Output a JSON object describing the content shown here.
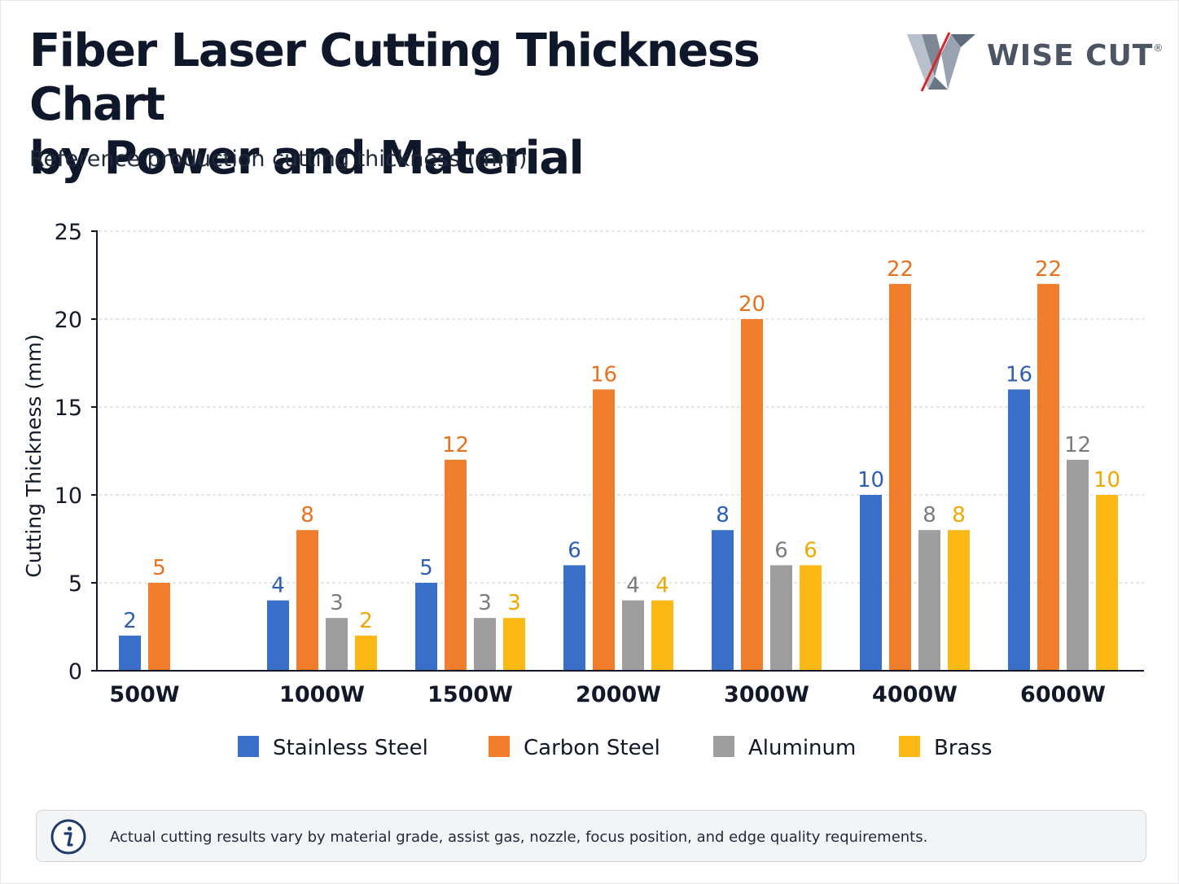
{
  "header": {
    "title_line1": "Fiber Laser Cutting Thickness Chart",
    "title_line2": "by Power and Material",
    "subtitle": "Reference production cutting thickness (mm)"
  },
  "logo": {
    "text": "WISE CUT",
    "mark": "®",
    "icon": "wise-cut-w-logo"
  },
  "note": {
    "icon": "info-icon",
    "text": "Actual cutting results vary by material grade, assist gas, nozzle, focus position, and edge quality requirements."
  },
  "chart_data": {
    "type": "bar",
    "title": "Fiber Laser Cutting Thickness Chart by Power and Material",
    "subtitle": "Reference production cutting thickness (mm)",
    "xlabel": "",
    "ylabel": "Cutting Thickness (mm)",
    "ylim": [
      0,
      25
    ],
    "yticks": [
      0,
      5,
      10,
      15,
      20,
      25
    ],
    "grid": true,
    "legend": "bottom",
    "categories": [
      "500W",
      "1000W",
      "1500W",
      "2000W",
      "3000W",
      "4000W",
      "6000W"
    ],
    "series": [
      {
        "name": "Stainless Steel",
        "color": "#3a6fc9",
        "values": [
          2,
          4,
          5,
          6,
          8,
          10,
          16
        ]
      },
      {
        "name": "Carbon Steel",
        "color": "#f07d2c",
        "values": [
          5,
          8,
          12,
          16,
          20,
          22,
          22
        ]
      },
      {
        "name": "Aluminum",
        "color": "#9e9e9e",
        "values": [
          null,
          3,
          3,
          4,
          6,
          8,
          12
        ]
      },
      {
        "name": "Brass",
        "color": "#fcb814",
        "values": [
          null,
          2,
          3,
          4,
          6,
          8,
          10
        ]
      }
    ],
    "label_colors": [
      "#2f5fb3",
      "#e8711e",
      "#7c7c7c",
      "#f0a800"
    ]
  }
}
